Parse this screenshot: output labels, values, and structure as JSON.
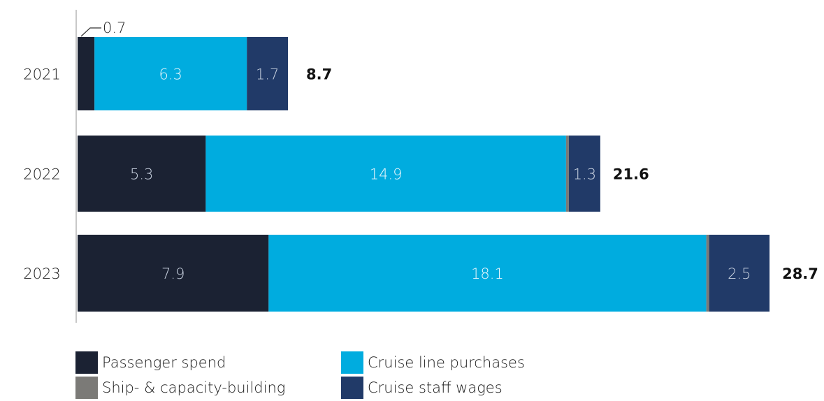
{
  "chart_data": {
    "type": "bar",
    "orientation": "horizontal",
    "stacked": true,
    "categories": [
      "2021",
      "2022",
      "2023"
    ],
    "series": [
      {
        "name": "Passenger spend",
        "color": "#1b2233",
        "values": [
          0.7,
          5.3,
          7.9
        ],
        "labels": [
          "0.7",
          "5.3",
          "7.9"
        ]
      },
      {
        "name": "Cruise line purchases",
        "color": "#00acdf",
        "values": [
          6.3,
          14.9,
          18.1
        ],
        "labels": [
          "6.3",
          "14.9",
          "18.1"
        ]
      },
      {
        "name": "Ship- & capacity-building",
        "color": "#7b7a77",
        "values": [
          0.0,
          0.1,
          0.1
        ],
        "labels": [
          "",
          "",
          ""
        ]
      },
      {
        "name": "Cruise staff wages",
        "color": "#213a68",
        "values": [
          1.7,
          1.3,
          2.5
        ],
        "labels": [
          "1.7",
          "1.3",
          "2.5"
        ]
      }
    ],
    "totals": [
      "8.7",
      "21.6",
      "28.7"
    ],
    "xlim": [
      0,
      28.7
    ],
    "grid": false,
    "legend_position": "bottom"
  },
  "legend": {
    "items": [
      {
        "label": "Passenger spend",
        "color": "#1b2233"
      },
      {
        "label": "Cruise line purchases",
        "color": "#00acdf"
      },
      {
        "label": "Ship- & capacity-building",
        "color": "#7b7a77"
      },
      {
        "label": "Cruise staff wages",
        "color": "#213a68"
      }
    ]
  }
}
